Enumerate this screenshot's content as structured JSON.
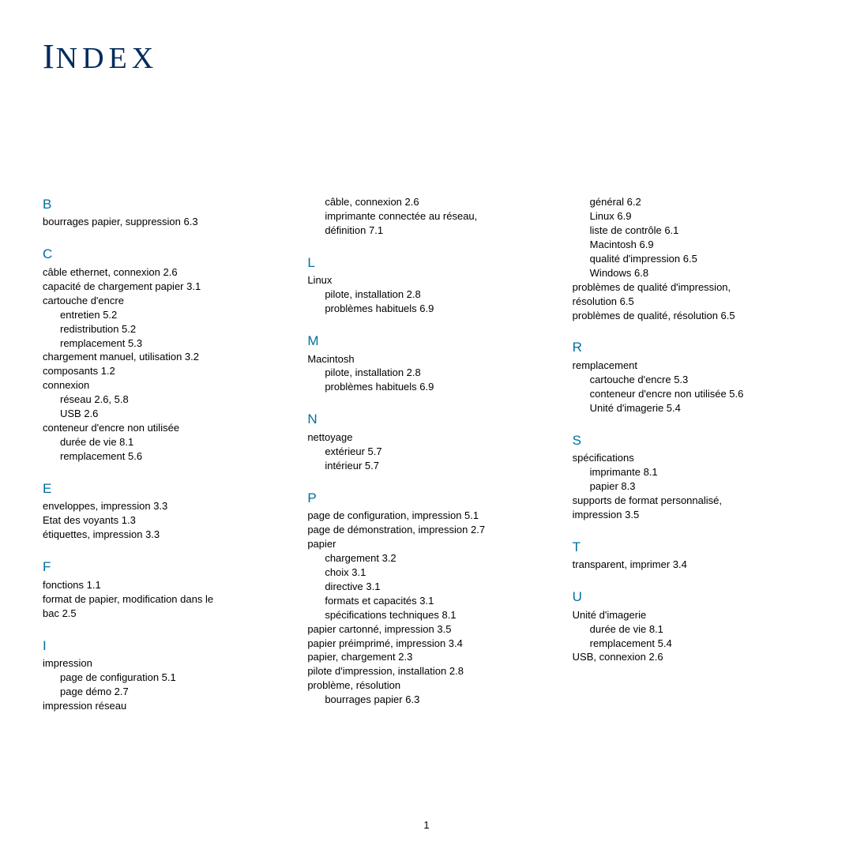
{
  "title_big": "I",
  "title_rest": "NDEX",
  "page_number": "1",
  "colors": {
    "title_color": "#002b5c",
    "section_color": "#006f9e",
    "text_color": "#000000",
    "background": "#ffffff"
  },
  "col1": {
    "B": {
      "letter": "B",
      "line1": "bourrages papier, suppression 6.3"
    },
    "C": {
      "letter": "C",
      "line1": "câble ethernet, connexion 2.6",
      "line2": "capacité de chargement papier 3.1",
      "line3": "cartouche d'encre",
      "line3a": "entretien 5.2",
      "line3b": "redistribution 5.2",
      "line3c": "remplacement 5.3",
      "line4": "chargement manuel, utilisation 3.2",
      "line5": "composants 1.2",
      "line6": "connexion",
      "line6a": "réseau 2.6, 5.8",
      "line6b": "USB 2.6",
      "line7": "conteneur d'encre non utilisée",
      "line7a": "durée de vie 8.1",
      "line7b": "remplacement 5.6"
    },
    "E": {
      "letter": "E",
      "line1": "enveloppes, impression 3.3",
      "line2": "Etat des voyants 1.3",
      "line3": "étiquettes, impression 3.3"
    },
    "F": {
      "letter": "F",
      "line1": "fonctions 1.1",
      "line2": "format de papier, modification dans le",
      "line2b": "bac 2.5"
    },
    "I": {
      "letter": "I",
      "line1": "impression",
      "line1a": "page de configuration 5.1",
      "line1b": "page démo 2.7",
      "line2": "impression réseau"
    }
  },
  "col2": {
    "Icont": {
      "line1": "câble, connexion 2.6",
      "line2": "imprimante connectée au réseau,",
      "line2b": "définition 7.1"
    },
    "L": {
      "letter": "L",
      "line1": "Linux",
      "line1a": "pilote, installation 2.8",
      "line1b": "problèmes habituels 6.9"
    },
    "M": {
      "letter": "M",
      "line1": "Macintosh",
      "line1a": "pilote, installation 2.8",
      "line1b": "problèmes habituels 6.9"
    },
    "N": {
      "letter": "N",
      "line1": "nettoyage",
      "line1a": "extérieur 5.7",
      "line1b": "intérieur 5.7"
    },
    "P": {
      "letter": "P",
      "line1": "page de configuration, impression 5.1",
      "line2": "page de démonstration, impression 2.7",
      "line3": "papier",
      "line3a": "chargement 3.2",
      "line3b": "choix 3.1",
      "line3c": "directive 3.1",
      "line3d": "formats et capacités 3.1",
      "line3e": "spécifications techniques 8.1",
      "line4": "papier cartonné, impression 3.5",
      "line5": "papier préimprimé, impression 3.4",
      "line6": "papier, chargement 2.3",
      "line7": "pilote d'impression, installation 2.8",
      "line8": "problème, résolution",
      "line8a": "bourrages papier 6.3"
    }
  },
  "col3": {
    "Pcont": {
      "line1": "général 6.2",
      "line2": "Linux 6.9",
      "line3": "liste de contrôle 6.1",
      "line4": "Macintosh 6.9",
      "line5": "qualité d'impression 6.5",
      "line6": "Windows 6.8",
      "line7": "problèmes de qualité d'impression,",
      "line7b": "résolution 6.5",
      "line8": "problèmes de qualité, résolution 6.5"
    },
    "R": {
      "letter": "R",
      "line1": "remplacement",
      "line1a": "cartouche d'encre 5.3",
      "line1b": "conteneur d'encre non utilisée 5.6",
      "line1c": "Unité d'imagerie 5.4"
    },
    "S": {
      "letter": "S",
      "line1": "spécifications",
      "line1a": "imprimante 8.1",
      "line1b": "papier 8.3",
      "line2": "supports de format personnalisé,",
      "line2b": "impression 3.5"
    },
    "T": {
      "letter": "T",
      "line1": "transparent, imprimer 3.4"
    },
    "U": {
      "letter": "U",
      "line1": "Unité d'imagerie",
      "line1a": "durée de vie 8.1",
      "line1b": "remplacement 5.4",
      "line2": "USB, connexion 2.6"
    }
  }
}
